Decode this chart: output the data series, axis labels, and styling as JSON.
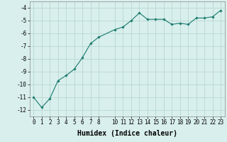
{
  "x": [
    0,
    1,
    2,
    3,
    4,
    5,
    6,
    7,
    8,
    10,
    11,
    12,
    13,
    14,
    15,
    16,
    17,
    18,
    19,
    20,
    21,
    22,
    23
  ],
  "y": [
    -11.0,
    -11.8,
    -11.1,
    -9.7,
    -9.3,
    -8.8,
    -7.9,
    -6.8,
    -6.3,
    -5.7,
    -5.5,
    -5.0,
    -4.4,
    -4.9,
    -4.9,
    -4.9,
    -5.3,
    -5.2,
    -5.3,
    -4.8,
    -4.8,
    -4.7,
    -4.2
  ],
  "line_color": "#1a7a6e",
  "marker": "D",
  "marker_size": 1.8,
  "linewidth": 0.8,
  "xlabel": "Humidex (Indice chaleur)",
  "xlabel_fontsize": 7,
  "xlabel_fontweight": "bold",
  "xlim": [
    -0.5,
    23.5
  ],
  "ylim": [
    -12.5,
    -3.5
  ],
  "yticks": [
    -12,
    -11,
    -10,
    -9,
    -8,
    -7,
    -6,
    -5,
    -4
  ],
  "xticks": [
    0,
    1,
    2,
    3,
    4,
    5,
    6,
    7,
    8,
    10,
    11,
    12,
    13,
    14,
    15,
    16,
    17,
    18,
    19,
    20,
    21,
    22,
    23
  ],
  "grid_color": "#b8d8d0",
  "bg_color": "#d8efed",
  "tick_fontsize": 5.5,
  "spine_color": "#888888"
}
